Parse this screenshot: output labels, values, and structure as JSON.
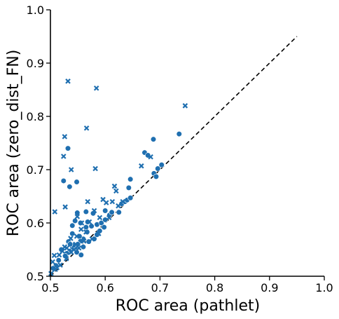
{
  "chart_data": {
    "type": "scatter",
    "title": "",
    "xlabel": "ROC area (pathlet)",
    "ylabel": "ROC area (zero_dist_FN)",
    "xlim": [
      0.5,
      1.0
    ],
    "ylim": [
      0.5,
      1.0
    ],
    "xticks": [
      "0.5",
      "0.6",
      "0.7",
      "0.8",
      "0.9",
      "1.0"
    ],
    "yticks": [
      "0.5",
      "0.6",
      "0.7",
      "0.8",
      "0.9",
      "1.0"
    ],
    "grid": false,
    "legend": "none",
    "colors": {
      "marker": "#1f6fb0",
      "reference_line": "#000000",
      "axis": "#000000"
    },
    "reference_line": {
      "style": "dashed",
      "x": [
        0.5,
        0.95
      ],
      "y": [
        0.5,
        0.95
      ]
    },
    "series": [
      {
        "marker": "circle",
        "points": [
          [
            0.532,
            0.74
          ],
          [
            0.535,
            0.668
          ],
          [
            0.548,
            0.677
          ],
          [
            0.524,
            0.679
          ],
          [
            0.565,
            0.621
          ],
          [
            0.578,
            0.618
          ],
          [
            0.549,
            0.619
          ],
          [
            0.545,
            0.604
          ],
          [
            0.555,
            0.6
          ],
          [
            0.568,
            0.602
          ],
          [
            0.575,
            0.594
          ],
          [
            0.585,
            0.597
          ],
          [
            0.593,
            0.6
          ],
          [
            0.6,
            0.606
          ],
          [
            0.608,
            0.615
          ],
          [
            0.6,
            0.623
          ],
          [
            0.612,
            0.62
          ],
          [
            0.625,
            0.62
          ],
          [
            0.63,
            0.636
          ],
          [
            0.636,
            0.64
          ],
          [
            0.64,
            0.643
          ],
          [
            0.646,
            0.647
          ],
          [
            0.643,
            0.666
          ],
          [
            0.646,
            0.682
          ],
          [
            0.672,
            0.732
          ],
          [
            0.678,
            0.727
          ],
          [
            0.689,
            0.693
          ],
          [
            0.693,
            0.687
          ],
          [
            0.696,
            0.702
          ],
          [
            0.703,
            0.709
          ],
          [
            0.688,
            0.757
          ],
          [
            0.735,
            0.767
          ],
          [
            0.565,
            0.592
          ],
          [
            0.567,
            0.583
          ],
          [
            0.56,
            0.57
          ],
          [
            0.555,
            0.566
          ],
          [
            0.55,
            0.56
          ],
          [
            0.545,
            0.554
          ],
          [
            0.54,
            0.552
          ],
          [
            0.535,
            0.547
          ],
          [
            0.53,
            0.543
          ],
          [
            0.527,
            0.538
          ],
          [
            0.533,
            0.565
          ],
          [
            0.54,
            0.58
          ],
          [
            0.553,
            0.575
          ],
          [
            0.57,
            0.565
          ],
          [
            0.58,
            0.57
          ],
          [
            0.585,
            0.578
          ],
          [
            0.59,
            0.585
          ],
          [
            0.598,
            0.592
          ],
          [
            0.56,
            0.555
          ],
          [
            0.556,
            0.54
          ],
          [
            0.548,
            0.545
          ],
          [
            0.542,
            0.558
          ],
          [
            0.536,
            0.56
          ],
          [
            0.52,
            0.55
          ],
          [
            0.515,
            0.53
          ],
          [
            0.51,
            0.52
          ],
          [
            0.505,
            0.515
          ],
          [
            0.54,
            0.595
          ]
        ]
      },
      {
        "marker": "x",
        "points": [
          [
            0.532,
            0.866
          ],
          [
            0.584,
            0.853
          ],
          [
            0.566,
            0.778
          ],
          [
            0.746,
            0.82
          ],
          [
            0.526,
            0.762
          ],
          [
            0.524,
            0.725
          ],
          [
            0.538,
            0.7
          ],
          [
            0.582,
            0.702
          ],
          [
            0.527,
            0.63
          ],
          [
            0.508,
            0.621
          ],
          [
            0.557,
            0.6
          ],
          [
            0.568,
            0.64
          ],
          [
            0.58,
            0.623
          ],
          [
            0.596,
            0.644
          ],
          [
            0.602,
            0.638
          ],
          [
            0.613,
            0.64
          ],
          [
            0.617,
            0.669
          ],
          [
            0.62,
            0.66
          ],
          [
            0.632,
            0.64
          ],
          [
            0.666,
            0.707
          ],
          [
            0.683,
            0.724
          ],
          [
            0.571,
            0.602
          ],
          [
            0.59,
            0.61
          ],
          [
            0.548,
            0.575
          ],
          [
            0.556,
            0.588
          ],
          [
            0.561,
            0.566
          ],
          [
            0.576,
            0.57
          ],
          [
            0.588,
            0.58
          ],
          [
            0.543,
            0.55
          ],
          [
            0.537,
            0.571
          ],
          [
            0.53,
            0.553
          ],
          [
            0.522,
            0.547
          ],
          [
            0.516,
            0.54
          ],
          [
            0.507,
            0.539
          ],
          [
            0.504,
            0.527
          ],
          [
            0.509,
            0.513
          ],
          [
            0.518,
            0.521
          ],
          [
            0.529,
            0.533
          ],
          [
            0.546,
            0.56
          ],
          [
            0.552,
            0.553
          ],
          [
            0.565,
            0.583
          ],
          [
            0.607,
            0.61
          ],
          [
            0.624,
            0.632
          ],
          [
            0.549,
            0.612
          ],
          [
            0.538,
            0.545
          ],
          [
            0.526,
            0.555
          ],
          [
            0.512,
            0.516
          ],
          [
            0.501,
            0.505
          ]
        ]
      }
    ]
  }
}
